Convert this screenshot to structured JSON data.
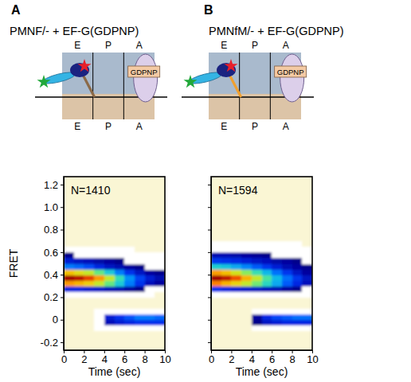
{
  "chart_data": [
    {
      "type": "heatmap",
      "label": "A",
      "title": "PMNF/- + EF-G(GDPNP)",
      "annotations": {
        "sites": [
          "E",
          "P",
          "A"
        ],
        "factor": "GDPNP",
        "count": "N=1410"
      },
      "xlabel": "Time (sec)",
      "ylabel": "FRET",
      "xlim": [
        0,
        10
      ],
      "ylim": [
        -0.27,
        1.27
      ],
      "xticks": [
        0,
        2,
        4,
        6,
        8,
        10
      ],
      "yticks": [
        -0.2,
        0,
        0.2,
        0.4,
        0.6,
        0.8,
        {
          "value": 1,
          "label": "1.0"
        },
        1.2
      ],
      "x_bins": [
        0,
        1,
        2,
        3,
        4,
        5,
        6,
        7,
        8,
        9,
        10
      ],
      "y_bins": [
        -0.1,
        -0.05,
        0,
        0.05,
        0.1,
        0.15,
        0.2,
        0.25,
        0.3,
        0.35,
        0.4,
        0.45,
        0.5,
        0.55,
        0.6,
        0.65,
        0.7
      ],
      "cells": [
        [
          0,
          0,
          0,
          3,
          5,
          5,
          5,
          5,
          5,
          5
        ],
        [
          0,
          0,
          0,
          5,
          15,
          18,
          20,
          22,
          22,
          22
        ],
        [
          0,
          0,
          0,
          5,
          18,
          22,
          26,
          30,
          30,
          28
        ],
        [
          0,
          0,
          0,
          3,
          5,
          5,
          6,
          6,
          6,
          6
        ],
        [
          0,
          0,
          0,
          0,
          0,
          0,
          0,
          0,
          0,
          0
        ],
        [
          0,
          0,
          0,
          0,
          0,
          0,
          0,
          0,
          0,
          0
        ],
        [
          5,
          5,
          5,
          5,
          5,
          5,
          5,
          3,
          3,
          0
        ],
        [
          20,
          20,
          18,
          17,
          15,
          14,
          12,
          10,
          8,
          6
        ],
        [
          75,
          72,
          68,
          60,
          50,
          40,
          30,
          22,
          15,
          12
        ],
        [
          95,
          92,
          85,
          75,
          60,
          45,
          32,
          24,
          18,
          14
        ],
        [
          70,
          65,
          60,
          50,
          40,
          30,
          22,
          16,
          12,
          10
        ],
        [
          30,
          28,
          25,
          20,
          16,
          14,
          12,
          10,
          8,
          6
        ],
        [
          18,
          16,
          15,
          13,
          12,
          10,
          8,
          6,
          5,
          5
        ],
        [
          10,
          9,
          8,
          7,
          6,
          5,
          5,
          4,
          3,
          3
        ],
        [
          5,
          5,
          5,
          4,
          3,
          3,
          3,
          0,
          0,
          0
        ],
        [
          0,
          0,
          0,
          0,
          0,
          0,
          0,
          0,
          0,
          0
        ]
      ]
    },
    {
      "type": "heatmap",
      "label": "B",
      "title": "PMNfM/- + EF-G(GDPNP)",
      "annotations": {
        "sites": [
          "E",
          "P",
          "A"
        ],
        "factor": "GDPNP",
        "count": "N=1594"
      },
      "xlabel": "Time (sec)",
      "tick_labels": "x",
      "xlim": [
        0,
        10
      ],
      "ylim": [
        -0.27,
        1.27
      ],
      "xticks": [
        0,
        2,
        4,
        6,
        8,
        10
      ],
      "yticks": [
        -0.2,
        0,
        0.2,
        0.4,
        0.6,
        0.8,
        1,
        1.2
      ],
      "x_bins": [
        0,
        1,
        2,
        3,
        4,
        5,
        6,
        7,
        8,
        9,
        10
      ],
      "y_bins": [
        -0.1,
        -0.05,
        0,
        0.05,
        0.1,
        0.15,
        0.2,
        0.25,
        0.3,
        0.35,
        0.4,
        0.45,
        0.5,
        0.55,
        0.6,
        0.65,
        0.7
      ],
      "cells": [
        [
          0,
          0,
          0,
          0,
          3,
          5,
          5,
          5,
          5,
          5
        ],
        [
          0,
          0,
          0,
          0,
          10,
          16,
          18,
          20,
          20,
          20
        ],
        [
          0,
          0,
          0,
          0,
          12,
          20,
          24,
          26,
          28,
          28
        ],
        [
          0,
          0,
          0,
          0,
          3,
          5,
          5,
          6,
          6,
          6
        ],
        [
          0,
          0,
          0,
          0,
          0,
          0,
          0,
          0,
          0,
          0
        ],
        [
          0,
          0,
          0,
          0,
          0,
          0,
          0,
          0,
          0,
          0
        ],
        [
          5,
          5,
          5,
          5,
          5,
          5,
          5,
          5,
          4,
          3
        ],
        [
          22,
          20,
          18,
          17,
          16,
          15,
          14,
          12,
          10,
          8
        ],
        [
          75,
          70,
          65,
          58,
          50,
          42,
          34,
          26,
          20,
          15
        ],
        [
          92,
          88,
          80,
          70,
          58,
          46,
          36,
          28,
          22,
          16
        ],
        [
          72,
          68,
          60,
          52,
          44,
          36,
          28,
          22,
          16,
          12
        ],
        [
          40,
          38,
          34,
          30,
          26,
          22,
          18,
          14,
          12,
          10
        ],
        [
          22,
          21,
          20,
          18,
          16,
          15,
          13,
          12,
          10,
          8
        ],
        [
          14,
          14,
          13,
          12,
          11,
          10,
          9,
          8,
          7,
          6
        ],
        [
          8,
          8,
          8,
          7,
          7,
          6,
          6,
          5,
          5,
          5
        ],
        [
          4,
          4,
          4,
          4,
          3,
          3,
          3,
          3,
          3,
          0
        ]
      ]
    }
  ]
}
